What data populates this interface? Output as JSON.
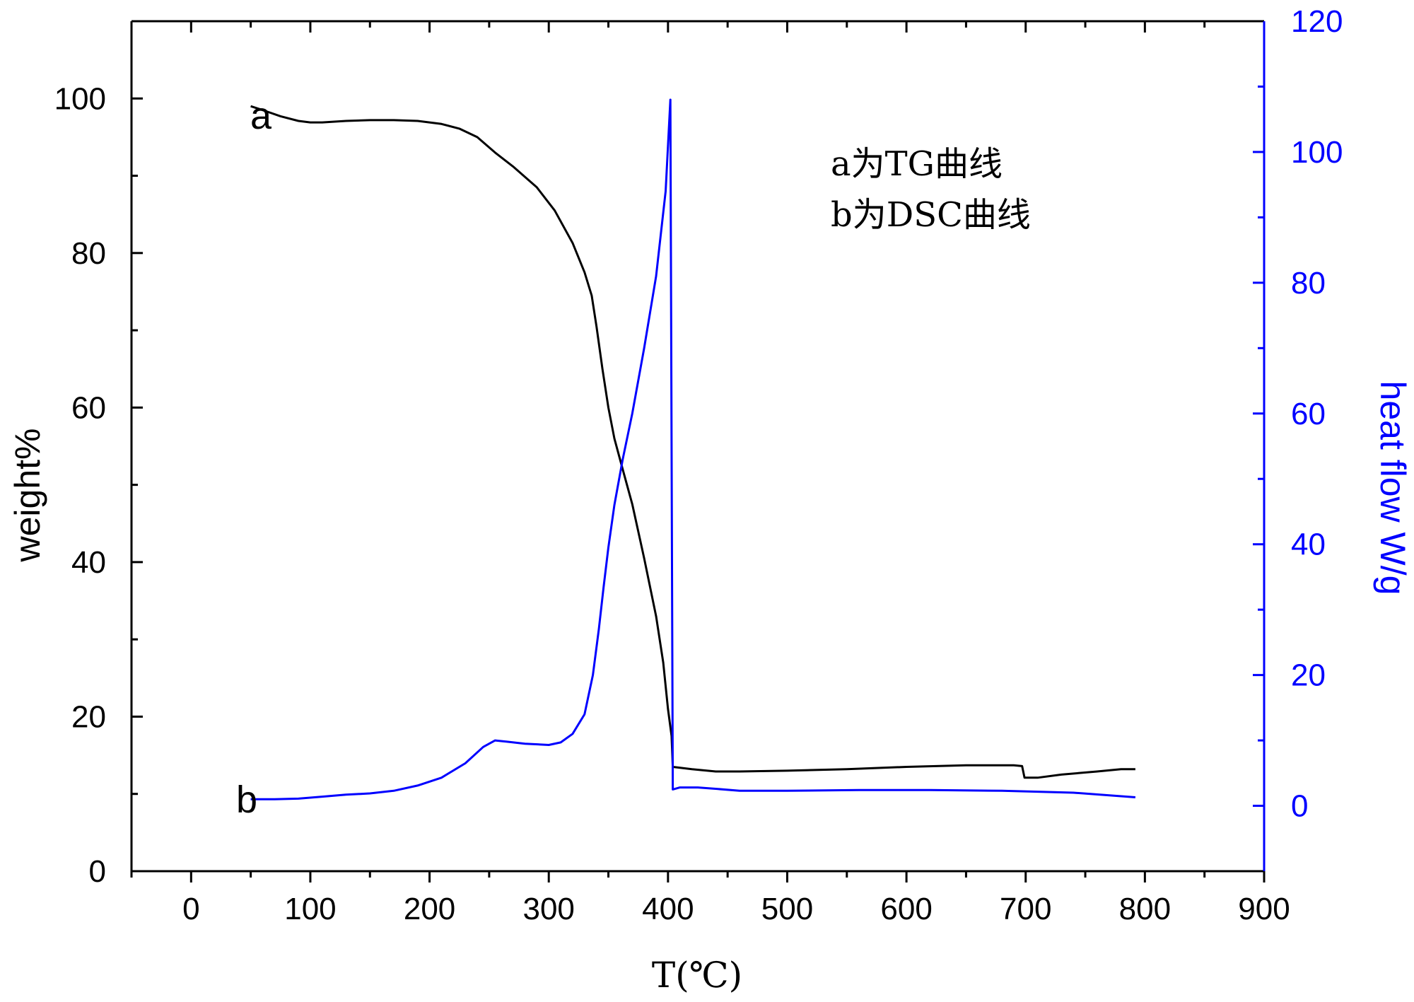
{
  "chart_data": {
    "type": "line",
    "title": "",
    "xlabel": "T(℃)",
    "ylabel_left": "weight%",
    "ylabel_right": "heat flow W/g",
    "xlim": [
      -50,
      900
    ],
    "ylim_left": [
      0,
      110
    ],
    "ylim_right": [
      -10,
      120
    ],
    "x_ticks": [
      0,
      100,
      200,
      300,
      400,
      500,
      600,
      700,
      800,
      900
    ],
    "y_left_ticks": [
      0,
      20,
      40,
      60,
      80,
      100
    ],
    "y_right_ticks": [
      0,
      20,
      40,
      60,
      80,
      100,
      120
    ],
    "grid": false,
    "legend_text": [
      "a为TG曲线",
      "b为DSC曲线"
    ],
    "colors": {
      "tg": "#000000",
      "dsc": "#0000ff",
      "axis_left": "#000000",
      "axis_right": "#0000ff"
    },
    "series": [
      {
        "name": "a",
        "axis": "left",
        "color": "#000000",
        "points": [
          [
            50,
            99
          ],
          [
            60,
            98.5
          ],
          [
            75,
            97.7
          ],
          [
            90,
            97.1
          ],
          [
            100,
            96.9
          ],
          [
            110,
            96.9
          ],
          [
            130,
            97.1
          ],
          [
            150,
            97.2
          ],
          [
            170,
            97.2
          ],
          [
            190,
            97.1
          ],
          [
            210,
            96.7
          ],
          [
            225,
            96.1
          ],
          [
            240,
            95.0
          ],
          [
            255,
            93.0
          ],
          [
            270,
            91.2
          ],
          [
            290,
            88.5
          ],
          [
            305,
            85.5
          ],
          [
            320,
            81.3
          ],
          [
            330,
            77.5
          ],
          [
            336,
            74.5
          ],
          [
            340,
            70.5
          ],
          [
            345,
            65.0
          ],
          [
            350,
            60.0
          ],
          [
            355,
            56.0
          ],
          [
            362,
            52.0
          ],
          [
            370,
            47.5
          ],
          [
            380,
            40.5
          ],
          [
            390,
            33.0
          ],
          [
            396,
            27.0
          ],
          [
            400,
            21.0
          ],
          [
            403,
            17.5
          ],
          [
            404,
            13.5
          ],
          [
            420,
            13.2
          ],
          [
            440,
            12.9
          ],
          [
            460,
            12.9
          ],
          [
            500,
            13.0
          ],
          [
            550,
            13.2
          ],
          [
            600,
            13.5
          ],
          [
            650,
            13.7
          ],
          [
            690,
            13.7
          ],
          [
            697,
            13.6
          ],
          [
            699,
            12.1
          ],
          [
            710,
            12.1
          ],
          [
            730,
            12.5
          ],
          [
            760,
            12.9
          ],
          [
            780,
            13.2
          ],
          [
            792,
            13.2
          ]
        ]
      },
      {
        "name": "b",
        "axis": "right",
        "color": "#0000ff",
        "points": [
          [
            50,
            1.0
          ],
          [
            70,
            1.0
          ],
          [
            90,
            1.1
          ],
          [
            110,
            1.4
          ],
          [
            130,
            1.7
          ],
          [
            150,
            1.9
          ],
          [
            170,
            2.3
          ],
          [
            190,
            3.1
          ],
          [
            210,
            4.3
          ],
          [
            230,
            6.5
          ],
          [
            245,
            9.0
          ],
          [
            255,
            10.0
          ],
          [
            265,
            9.8
          ],
          [
            280,
            9.5
          ],
          [
            300,
            9.3
          ],
          [
            310,
            9.7
          ],
          [
            320,
            11.0
          ],
          [
            330,
            14.0
          ],
          [
            337,
            20.0
          ],
          [
            342,
            27.0
          ],
          [
            346,
            33.5
          ],
          [
            350,
            39.5
          ],
          [
            355,
            46.0
          ],
          [
            362,
            53.0
          ],
          [
            370,
            60.0
          ],
          [
            380,
            70.0
          ],
          [
            390,
            81.0
          ],
          [
            398,
            94.0
          ],
          [
            402,
            108.0
          ],
          [
            404,
            2.5
          ],
          [
            410,
            2.8
          ],
          [
            425,
            2.8
          ],
          [
            440,
            2.6
          ],
          [
            460,
            2.3
          ],
          [
            500,
            2.3
          ],
          [
            560,
            2.4
          ],
          [
            620,
            2.4
          ],
          [
            680,
            2.3
          ],
          [
            740,
            2.0
          ],
          [
            792,
            1.3
          ]
        ]
      }
    ]
  }
}
